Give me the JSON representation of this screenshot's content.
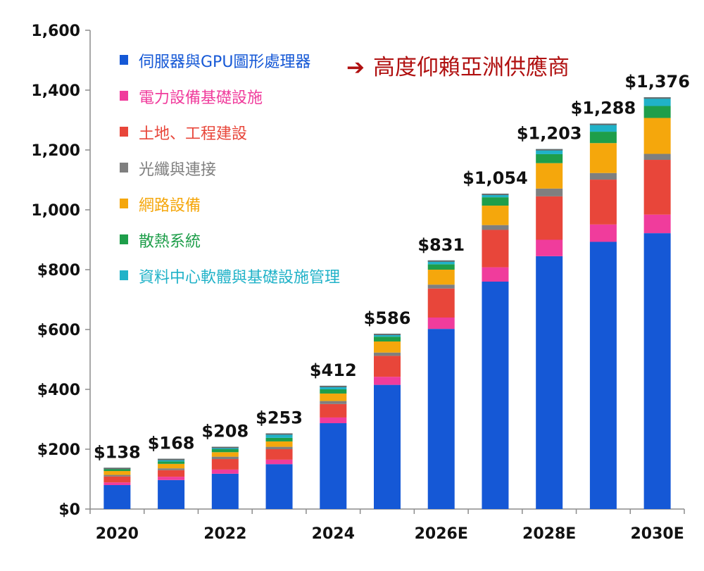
{
  "colors": {
    "gpu": "#1558d6",
    "power": "#f03c9c",
    "land": "#e8463a",
    "fiber": "#7f7f7f",
    "network": "#f5a70c",
    "cooling": "#1e9e4a",
    "software": "#20b2c8",
    "callout": "#b01010"
  },
  "callout": {
    "arrow": "➔",
    "text": "高度仰賴亞洲供應商"
  },
  "chart_data": {
    "type": "bar",
    "stacked": true,
    "categories": [
      "2020",
      "2021",
      "2022",
      "2023",
      "2024",
      "2025",
      "2026E",
      "2027E",
      "2028E",
      "2029E",
      "2030E"
    ],
    "x_tick_labels": [
      "2020",
      "",
      "2022",
      "",
      "2024",
      "",
      "2026E",
      "",
      "2028E",
      "",
      "2030E"
    ],
    "ylim": [
      0,
      1600
    ],
    "y_ticks": [
      0,
      200,
      400,
      600,
      800,
      1000,
      1200,
      1400,
      1600
    ],
    "y_tick_labels": [
      "$0",
      "$200",
      "$400",
      "$600",
      "$800",
      "1,000",
      "1,200",
      "1,400",
      "1,600"
    ],
    "grid": false,
    "legend_position": "top-left",
    "totals": [
      138,
      168,
      208,
      253,
      412,
      586,
      831,
      1054,
      1203,
      1288,
      1376
    ],
    "total_labels": [
      "$138",
      "$168",
      "$208",
      "$253",
      "$412",
      "$586",
      "$831",
      "$1,054",
      "$1,203",
      "$1,288",
      "$1,376"
    ],
    "series": [
      {
        "name": "伺服器與GPU圖形處理器",
        "color_key": "gpu",
        "values": [
          80,
          97,
          118,
          150,
          287,
          415,
          602,
          760,
          845,
          893,
          922
        ]
      },
      {
        "name": "電力設備基礎設施",
        "color_key": "power",
        "values": [
          9,
          11,
          14,
          15,
          19,
          27,
          38,
          48,
          55,
          58,
          62
        ]
      },
      {
        "name": "土地、工程建設",
        "color_key": "land",
        "values": [
          20,
          22,
          35,
          35,
          45,
          70,
          97,
          125,
          145,
          150,
          183
        ]
      },
      {
        "name": "光纖與連接",
        "color_key": "fiber",
        "values": [
          5,
          6,
          8,
          8,
          10,
          11,
          13,
          16,
          26,
          22,
          20
        ]
      },
      {
        "name": "網路設備",
        "color_key": "network",
        "values": [
          13,
          15,
          15,
          18,
          25,
          37,
          50,
          65,
          85,
          100,
          120
        ]
      },
      {
        "name": "散熱系統",
        "color_key": "cooling",
        "values": [
          6,
          8,
          10,
          12,
          14,
          16,
          18,
          28,
          30,
          38,
          40
        ]
      },
      {
        "name": "資料中心軟體與基礎設施管理",
        "color_key": "software",
        "values": [
          5,
          9,
          8,
          15,
          12,
          10,
          13,
          12,
          17,
          27,
          29
        ]
      }
    ]
  }
}
